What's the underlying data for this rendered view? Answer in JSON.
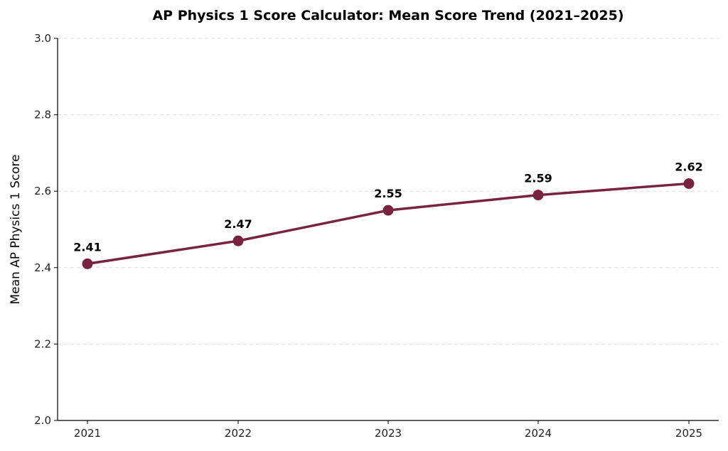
{
  "chart_data": {
    "type": "line",
    "title": "AP Physics 1 Score Calculator: Mean Score Trend (2021–2025)",
    "xlabel": "",
    "ylabel": "Mean AP Physics 1 Score",
    "categories": [
      "2021",
      "2022",
      "2023",
      "2024",
      "2025"
    ],
    "series": [
      {
        "values": [
          2.41,
          2.47,
          2.55,
          2.59,
          2.62
        ],
        "data_labels": [
          "2.41",
          "2.47",
          "2.55",
          "2.59",
          "2.62"
        ]
      }
    ],
    "ylim": [
      2.0,
      3.0
    ],
    "yticks": [
      "2.0",
      "2.2",
      "2.4",
      "2.6",
      "2.8",
      "3.0"
    ],
    "grid": "horizontal dashed",
    "colors": {
      "line": "#7a2341",
      "marker": "#7a2341"
    }
  }
}
